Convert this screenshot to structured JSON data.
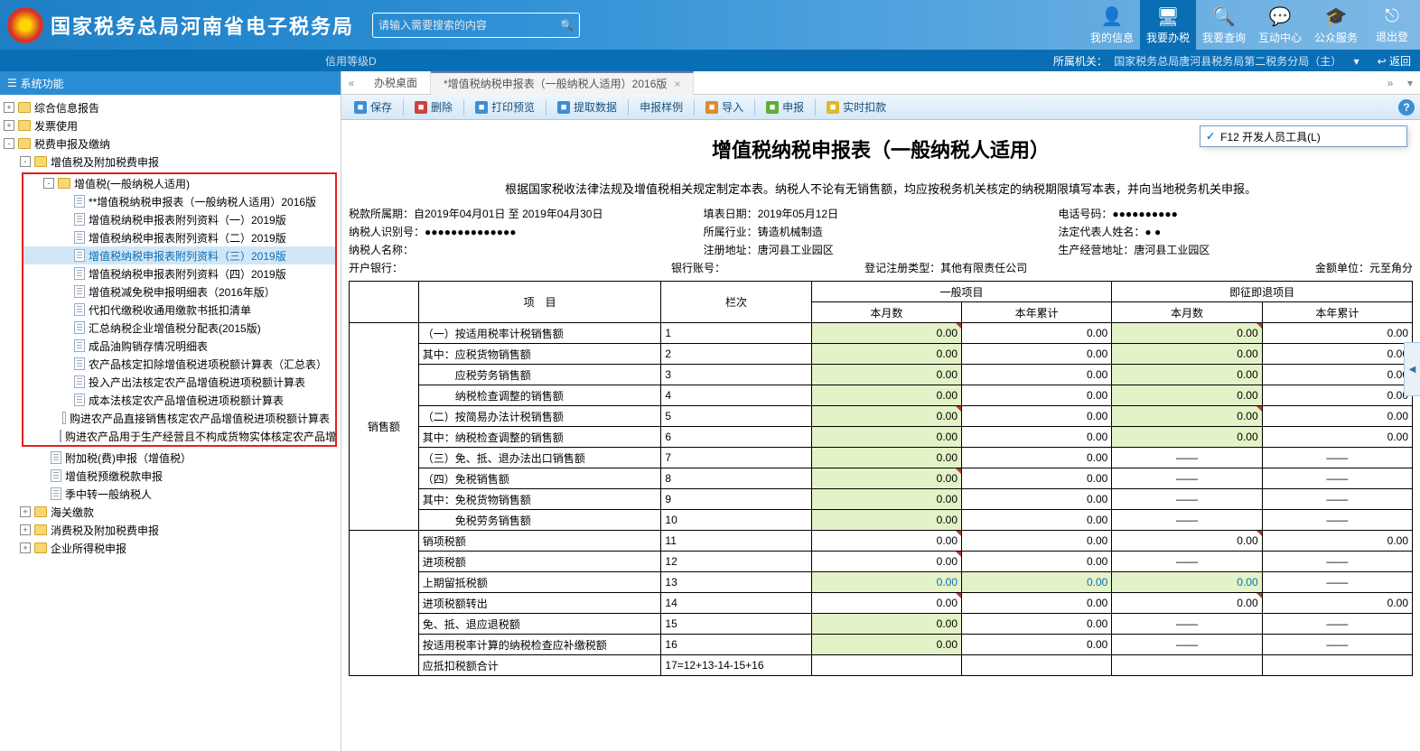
{
  "header": {
    "site_title": "国家税务总局河南省电子税务局",
    "search_placeholder": "请输入需要搜索的内容",
    "nav": [
      {
        "icon": "👤",
        "label": "我的信息"
      },
      {
        "icon": "🖥",
        "label": "我要办税",
        "active": true
      },
      {
        "icon": "🔍",
        "label": "我要查询"
      },
      {
        "icon": "💬",
        "label": "互动中心"
      },
      {
        "icon": "🎓",
        "label": "公众服务"
      },
      {
        "icon": "⎋",
        "label": "退出登"
      }
    ]
  },
  "subheader": {
    "credit": "信用等级D",
    "org_label": "所属机关：",
    "org_name": "国家税务总局唐河县税务局第二税务分局（主）",
    "back": "返回"
  },
  "sidebar": {
    "title": "系统功能",
    "top": [
      {
        "exp": "+",
        "label": "综合信息报告"
      },
      {
        "exp": "+",
        "label": "发票使用"
      },
      {
        "exp": "-",
        "label": "税费申报及缴纳"
      }
    ],
    "vat_parent": {
      "exp": "-",
      "label": "增值税及附加税费申报"
    },
    "vat_group": {
      "exp": "-",
      "label": "增值税(一般纳税人适用)"
    },
    "vat_children": [
      "**增值税纳税申报表（一般纳税人适用）2016版",
      "增值税纳税申报表附列资料（一）2019版",
      "增值税纳税申报表附列资料（二）2019版",
      "增值税纳税申报表附列资料（三）2019版",
      "增值税纳税申报表附列资料（四）2019版",
      "增值税减免税申报明细表（2016年版）",
      "代扣代缴税收通用缴款书抵扣清单",
      "汇总纳税企业增值税分配表(2015版)",
      "成品油购销存情况明细表",
      "农产品核定扣除增值税进项税额计算表（汇总表）",
      "投入产出法核定农产品增值税进项税额计算表",
      "成本法核定农产品增值税进项税额计算表",
      "购进农产品直接销售核定农产品增值税进项税额计算表",
      "购进农产品用于生产经营且不构成货物实体核定农产品增"
    ],
    "after": [
      "附加税(费)申报（增值税）",
      "增值税预缴税款申报",
      "季中转一般纳税人"
    ],
    "bottom": [
      {
        "exp": "+",
        "label": "海关缴款"
      },
      {
        "exp": "+",
        "label": "消费税及附加税费申报"
      },
      {
        "exp": "+",
        "label": "企业所得税申报"
      }
    ]
  },
  "tabs": {
    "home": "办税桌面",
    "current": "*增值税纳税申报表（一般纳税人适用）2016版"
  },
  "toolbar": [
    {
      "c": "#3b8fd4",
      "t": "保存"
    },
    {
      "c": "#d04040",
      "t": "删除"
    },
    {
      "c": "#3b8fd4",
      "t": "打印预览"
    },
    {
      "c": "#3b8fd4",
      "t": "提取数据"
    },
    {
      "c": "",
      "t": "申报样例",
      "plain": true
    },
    {
      "c": "#e08b2c",
      "t": "导入"
    },
    {
      "c": "#5fae3a",
      "t": "申报"
    },
    {
      "c": "#e0b82c",
      "t": "实时扣款"
    }
  ],
  "form": {
    "title": "增值税纳税申报表（一般纳税人适用）",
    "desc": "根据国家税收法律法规及增值税相关规定制定本表。纳税人不论有无销售额，均应按税务机关核定的纳税期限填写本表，并向当地税务机关申报。",
    "period_label": "税款所属期：",
    "period": "自2019年04月01日 至 2019年04月30日",
    "fill_date_label": "填表日期：",
    "fill_date": "2019年05月12日",
    "phone_label": "电话号码：",
    "phone": "●●●●●●●●●●",
    "tin_label": "纳税人识别号：",
    "tin": "●●●●●●●●●●●●●●",
    "industry_label": "所属行业：",
    "industry": "铸造机械制造",
    "rep_label": "法定代表人姓名：",
    "rep": "● ●",
    "name_label": "纳税人名称：",
    "name": "",
    "regaddr_label": "注册地址：",
    "regaddr": "唐河县工业园区",
    "bizaddr_label": "生产经营地址：",
    "bizaddr": "唐河县工业园区",
    "bank_label": "开户银行：",
    "acct_label": "银行账号：",
    "regtype_label": "登记注册类型：",
    "regtype": "其他有限责任公司",
    "unit_label": "金额单位：",
    "unit": "元至角分",
    "col_item": "项　目",
    "col_line": "栏次",
    "col_gen": "一般项目",
    "col_imm": "即征即退项目",
    "col_month": "本月数",
    "col_year": "本年累计",
    "section": "销售额",
    "rows": [
      {
        "n": "1",
        "t": "（一）按适用税率计税销售额",
        "v": [
          "0.00",
          "0.00",
          "0.00",
          "0.00"
        ],
        "hl": [
          1,
          0,
          1,
          0
        ],
        "tri": [
          1,
          0,
          1,
          0
        ]
      },
      {
        "n": "2",
        "t": "其中：应税货物销售额",
        "v": [
          "0.00",
          "0.00",
          "0.00",
          "0.00"
        ],
        "hl": [
          1,
          0,
          1,
          0
        ]
      },
      {
        "n": "3",
        "t": "　　　应税劳务销售额",
        "v": [
          "0.00",
          "0.00",
          "0.00",
          "0.00"
        ],
        "hl": [
          1,
          0,
          1,
          0
        ]
      },
      {
        "n": "4",
        "t": "　　　纳税检查调整的销售额",
        "v": [
          "0.00",
          "0.00",
          "0.00",
          "0.00"
        ],
        "hl": [
          1,
          0,
          1,
          0
        ]
      },
      {
        "n": "5",
        "t": "（二）按简易办法计税销售额",
        "v": [
          "0.00",
          "0.00",
          "0.00",
          "0.00"
        ],
        "hl": [
          1,
          0,
          1,
          0
        ],
        "tri": [
          1,
          0,
          1,
          0
        ]
      },
      {
        "n": "6",
        "t": "其中：纳税检查调整的销售额",
        "v": [
          "0.00",
          "0.00",
          "0.00",
          "0.00"
        ],
        "hl": [
          1,
          0,
          1,
          0
        ]
      },
      {
        "n": "7",
        "t": "（三）免、抵、退办法出口销售额",
        "v": [
          "0.00",
          "0.00",
          "——",
          "——"
        ],
        "hl": [
          1,
          0,
          0,
          0
        ],
        "dash": [
          0,
          0,
          1,
          1
        ]
      },
      {
        "n": "8",
        "t": "（四）免税销售额",
        "v": [
          "0.00",
          "0.00",
          "——",
          "——"
        ],
        "hl": [
          1,
          0,
          0,
          0
        ],
        "dash": [
          0,
          0,
          1,
          1
        ],
        "tri": [
          1,
          0,
          0,
          0
        ]
      },
      {
        "n": "9",
        "t": "其中：免税货物销售额",
        "v": [
          "0.00",
          "0.00",
          "——",
          "——"
        ],
        "hl": [
          1,
          0,
          0,
          0
        ],
        "dash": [
          0,
          0,
          1,
          1
        ]
      },
      {
        "n": "10",
        "t": "　　　免税劳务销售额",
        "v": [
          "0.00",
          "0.00",
          "——",
          "——"
        ],
        "hl": [
          1,
          0,
          0,
          0
        ],
        "dash": [
          0,
          0,
          1,
          1
        ]
      }
    ],
    "rows2": [
      {
        "n": "11",
        "t": "销项税额",
        "v": [
          "0.00",
          "0.00",
          "0.00",
          "0.00"
        ],
        "tri": [
          1,
          0,
          1,
          0
        ]
      },
      {
        "n": "12",
        "t": "进项税额",
        "v": [
          "0.00",
          "0.00",
          "——",
          "——"
        ],
        "dash": [
          0,
          0,
          1,
          1
        ],
        "tri": [
          1,
          0,
          0,
          0
        ]
      },
      {
        "n": "13",
        "t": "上期留抵税额",
        "v": [
          "0.00",
          "0.00",
          "0.00",
          "——"
        ],
        "hl": [
          1,
          1,
          1,
          0
        ],
        "dash": [
          0,
          0,
          0,
          1
        ],
        "blue": [
          1,
          1,
          1,
          0
        ]
      },
      {
        "n": "14",
        "t": "进项税额转出",
        "v": [
          "0.00",
          "0.00",
          "0.00",
          "0.00"
        ],
        "tri": [
          1,
          0,
          1,
          0
        ]
      },
      {
        "n": "15",
        "t": "免、抵、退应退税额",
        "v": [
          "0.00",
          "0.00",
          "——",
          "——"
        ],
        "hl": [
          1,
          0,
          0,
          0
        ],
        "dash": [
          0,
          0,
          1,
          1
        ]
      },
      {
        "n": "16",
        "t": "按适用税率计算的纳税检查应补缴税额",
        "v": [
          "0.00",
          "0.00",
          "——",
          "——"
        ],
        "hl": [
          1,
          0,
          0,
          0
        ],
        "dash": [
          0,
          0,
          1,
          1
        ]
      },
      {
        "n": "17=12+13-14-15+16",
        "t": "应抵扣税额合计",
        "v": [
          "",
          "",
          "",
          ""
        ],
        "hl": [
          0,
          0,
          0,
          0
        ]
      }
    ]
  },
  "devpop": "F12 开发人员工具(L)"
}
